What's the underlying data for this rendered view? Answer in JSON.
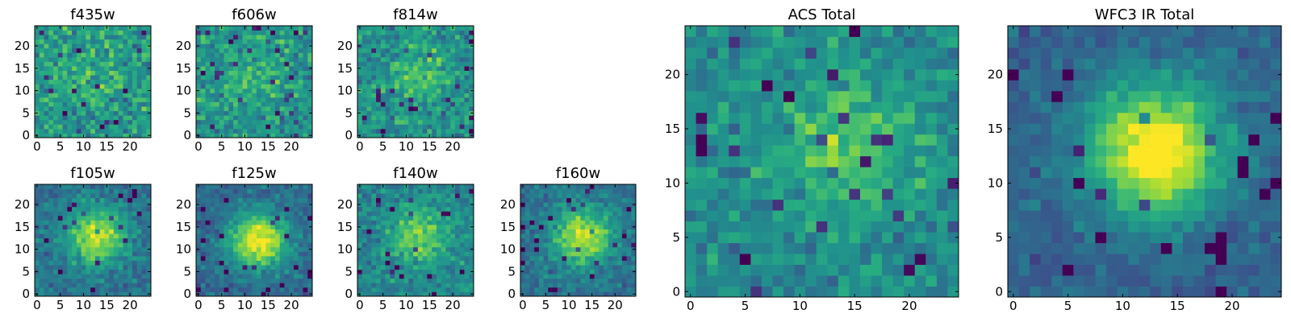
{
  "chart_data": [
    {
      "type": "heatmap",
      "title": "f435w",
      "xlim": [
        -0.5,
        24.5
      ],
      "ylim": [
        -0.5,
        24.5
      ],
      "xticks": [
        0,
        5,
        10,
        15,
        20
      ],
      "yticks": [
        0,
        5,
        10,
        15,
        20
      ],
      "xtick_labels": [
        "0",
        "5",
        "10",
        "15",
        "20"
      ],
      "ytick_labels": [
        "0",
        "5",
        "10",
        "15",
        "20"
      ],
      "grid_size": 25,
      "colormap": "viridis",
      "source_peak": [
        12,
        13
      ],
      "source_strength": 0.08,
      "noise_level": 0.38,
      "seed": 11
    },
    {
      "type": "heatmap",
      "title": "f606w",
      "xlim": [
        -0.5,
        24.5
      ],
      "ylim": [
        -0.5,
        24.5
      ],
      "xticks": [
        0,
        5,
        10,
        15,
        20
      ],
      "yticks": [
        0,
        5,
        10,
        15,
        20
      ],
      "xtick_labels": [
        "0",
        "5",
        "10",
        "15",
        "20"
      ],
      "ytick_labels": [
        "0",
        "5",
        "10",
        "15",
        "20"
      ],
      "grid_size": 25,
      "colormap": "viridis",
      "source_peak": [
        12,
        13
      ],
      "source_strength": 0.15,
      "noise_level": 0.36,
      "seed": 23
    },
    {
      "type": "heatmap",
      "title": "f814w",
      "xlim": [
        -0.5,
        24.5
      ],
      "ylim": [
        -0.5,
        24.5
      ],
      "xticks": [
        0,
        5,
        10,
        15,
        20
      ],
      "yticks": [
        0,
        5,
        10,
        15,
        20
      ],
      "xtick_labels": [
        "0",
        "5",
        "10",
        "15",
        "20"
      ],
      "ytick_labels": [
        "0",
        "5",
        "10",
        "15",
        "20"
      ],
      "grid_size": 25,
      "colormap": "viridis",
      "source_peak": [
        13,
        14
      ],
      "source_strength": 0.18,
      "noise_level": 0.36,
      "seed": 37
    },
    {
      "type": "heatmap",
      "title": "f105w",
      "xlim": [
        -0.5,
        24.5
      ],
      "ylim": [
        -0.5,
        24.5
      ],
      "xticks": [
        0,
        5,
        10,
        15,
        20
      ],
      "yticks": [
        0,
        5,
        10,
        15,
        20
      ],
      "xtick_labels": [
        "0",
        "5",
        "10",
        "15",
        "20"
      ],
      "ytick_labels": [
        "0",
        "5",
        "10",
        "15",
        "20"
      ],
      "grid_size": 25,
      "colormap": "viridis",
      "source_peak": [
        13,
        13
      ],
      "source_strength": 0.55,
      "noise_level": 0.26,
      "seed": 41
    },
    {
      "type": "heatmap",
      "title": "f125w",
      "xlim": [
        -0.5,
        24.5
      ],
      "ylim": [
        -0.5,
        24.5
      ],
      "xticks": [
        0,
        5,
        10,
        15,
        20
      ],
      "yticks": [
        0,
        5,
        10,
        15,
        20
      ],
      "xtick_labels": [
        "0",
        "5",
        "10",
        "15",
        "20"
      ],
      "ytick_labels": [
        "0",
        "5",
        "10",
        "15",
        "20"
      ],
      "grid_size": 25,
      "colormap": "viridis",
      "source_peak": [
        13,
        12
      ],
      "source_strength": 0.65,
      "noise_level": 0.22,
      "seed": 53
    },
    {
      "type": "heatmap",
      "title": "f140w",
      "xlim": [
        -0.5,
        24.5
      ],
      "ylim": [
        -0.5,
        24.5
      ],
      "xticks": [
        0,
        5,
        10,
        15,
        20
      ],
      "yticks": [
        0,
        5,
        10,
        15,
        20
      ],
      "xtick_labels": [
        "0",
        "5",
        "10",
        "15",
        "20"
      ],
      "ytick_labels": [
        "0",
        "5",
        "10",
        "15",
        "20"
      ],
      "grid_size": 25,
      "colormap": "viridis",
      "source_peak": [
        13,
        13
      ],
      "source_strength": 0.35,
      "noise_level": 0.28,
      "seed": 67
    },
    {
      "type": "heatmap",
      "title": "f160w",
      "xlim": [
        -0.5,
        24.5
      ],
      "ylim": [
        -0.5,
        24.5
      ],
      "xticks": [
        0,
        5,
        10,
        15,
        20
      ],
      "yticks": [
        0,
        5,
        10,
        15,
        20
      ],
      "xtick_labels": [
        "0",
        "5",
        "10",
        "15",
        "20"
      ],
      "ytick_labels": [
        "0",
        "5",
        "10",
        "15",
        "20"
      ],
      "grid_size": 25,
      "colormap": "viridis",
      "source_peak": [
        13,
        13
      ],
      "source_strength": 0.55,
      "noise_level": 0.25,
      "seed": 79
    },
    {
      "type": "heatmap",
      "title": "ACS Total",
      "xlim": [
        -0.5,
        24.5
      ],
      "ylim": [
        -0.5,
        24.5
      ],
      "xticks": [
        0,
        5,
        10,
        15,
        20
      ],
      "yticks": [
        0,
        5,
        10,
        15,
        20
      ],
      "xtick_labels": [
        "0",
        "5",
        "10",
        "15",
        "20"
      ],
      "ytick_labels": [
        "0",
        "5",
        "10",
        "15",
        "20"
      ],
      "grid_size": 25,
      "colormap": "viridis",
      "source_peak": [
        14,
        13
      ],
      "source_strength": 0.28,
      "noise_level": 0.3,
      "seed": 97
    },
    {
      "type": "heatmap",
      "title": "WFC3 IR Total",
      "xlim": [
        -0.5,
        24.5
      ],
      "ylim": [
        -0.5,
        24.5
      ],
      "xticks": [
        0,
        5,
        10,
        15,
        20
      ],
      "yticks": [
        0,
        5,
        10,
        15,
        20
      ],
      "xtick_labels": [
        "0",
        "5",
        "10",
        "15",
        "20"
      ],
      "ytick_labels": [
        "0",
        "5",
        "10",
        "15",
        "20"
      ],
      "grid_size": 25,
      "colormap": "viridis",
      "source_peak": [
        13,
        13
      ],
      "source_strength": 0.75,
      "noise_level": 0.18,
      "seed": 113
    }
  ]
}
